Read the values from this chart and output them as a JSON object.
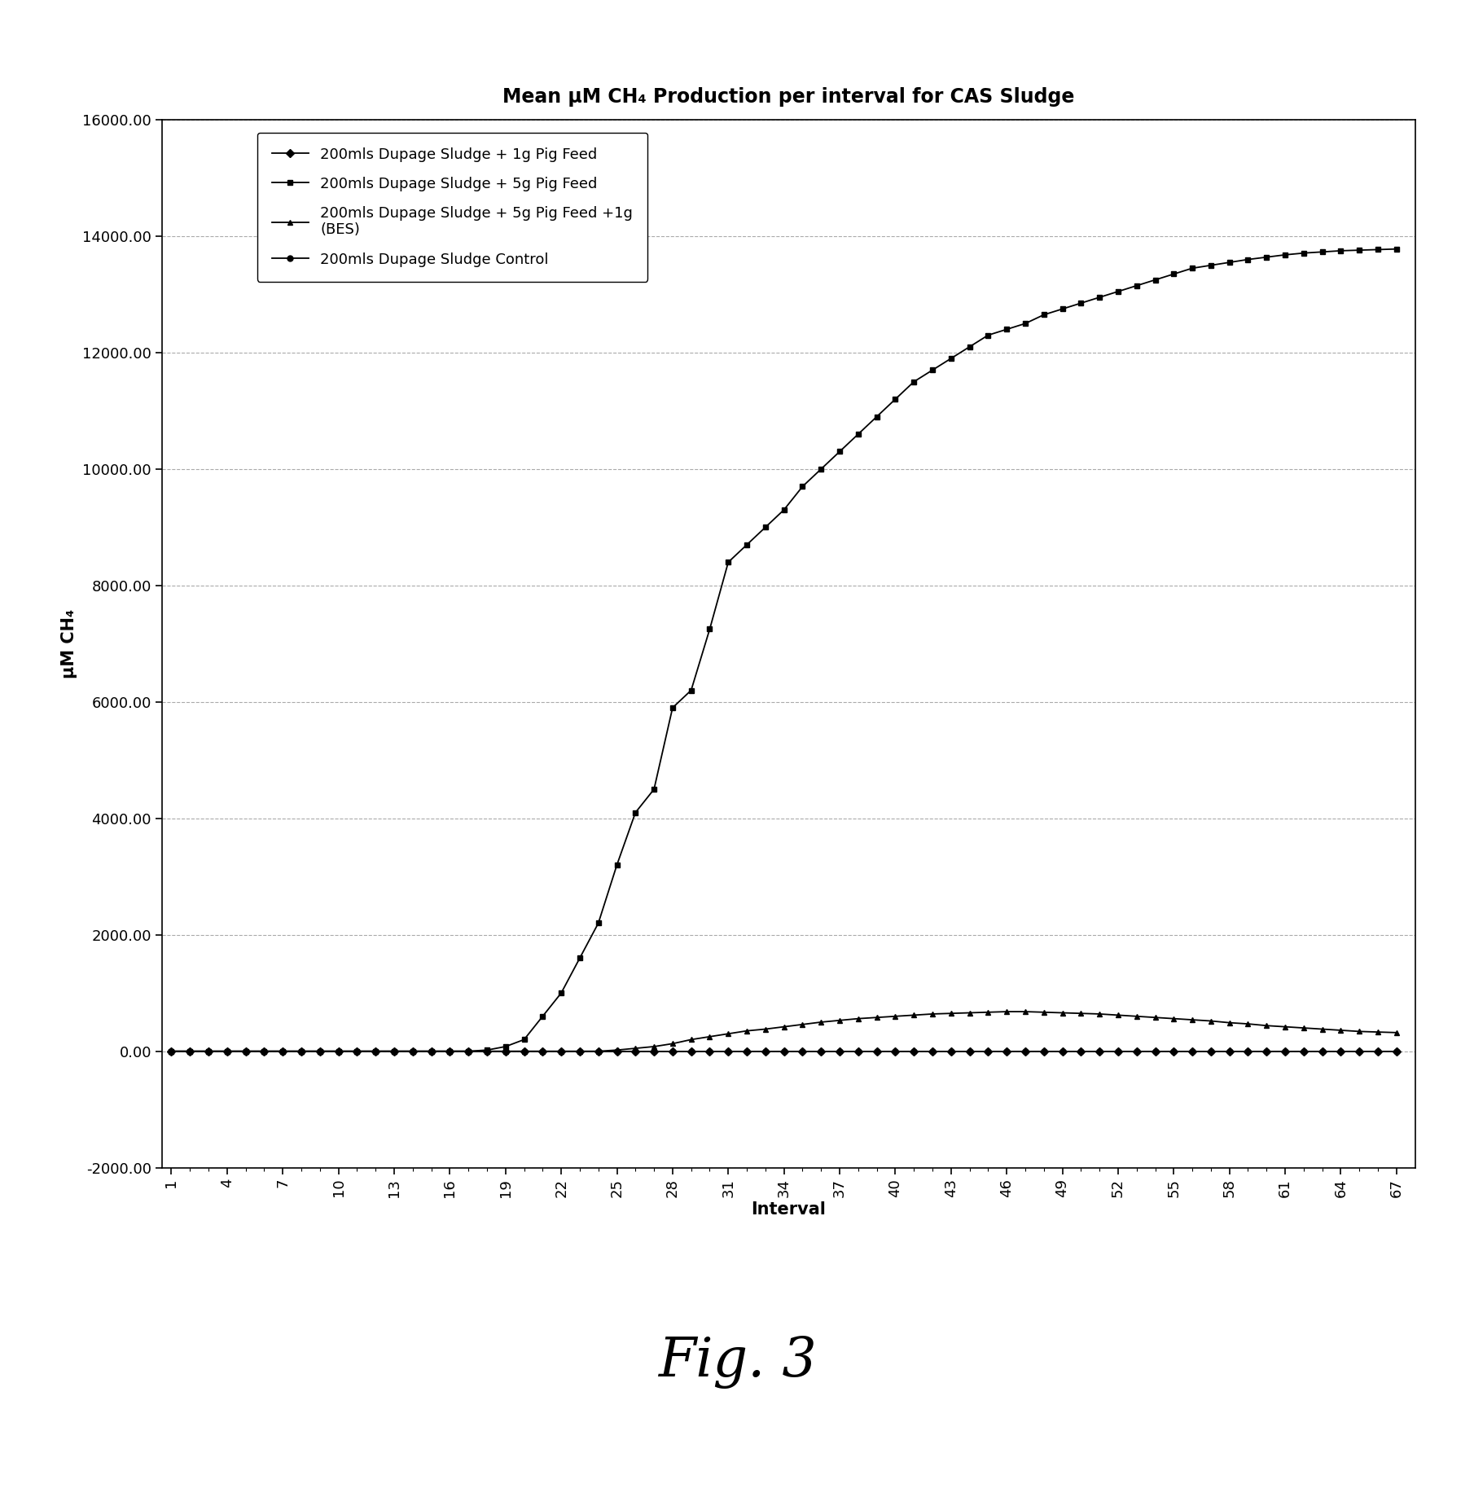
{
  "title": "Mean μM CH₄ Production per interval for CAS Sludge",
  "xlabel": "Interval",
  "ylabel": "μM CH₄",
  "ylim": [
    -2000,
    16000
  ],
  "yticks": [
    -2000,
    0,
    2000,
    4000,
    6000,
    8000,
    10000,
    12000,
    14000,
    16000
  ],
  "ytick_labels": [
    "-2000.00",
    "0.00",
    "2000.00",
    "4000.00",
    "6000.00",
    "8000.00",
    "10000.00",
    "12000.00",
    "14000.00",
    "16000.00"
  ],
  "x_intervals": [
    1,
    2,
    3,
    4,
    5,
    6,
    7,
    8,
    9,
    10,
    11,
    12,
    13,
    14,
    15,
    16,
    17,
    18,
    19,
    20,
    21,
    22,
    23,
    24,
    25,
    26,
    27,
    28,
    29,
    30,
    31,
    32,
    33,
    34,
    35,
    36,
    37,
    38,
    39,
    40,
    41,
    42,
    43,
    44,
    45,
    46,
    47,
    48,
    49,
    50,
    51,
    52,
    53,
    54,
    55,
    56,
    57,
    58,
    59,
    60,
    61,
    62,
    63,
    64,
    65,
    66,
    67
  ],
  "xtick_vals": [
    1,
    4,
    7,
    10,
    13,
    16,
    19,
    22,
    25,
    28,
    31,
    34,
    37,
    40,
    43,
    46,
    49,
    52,
    55,
    58,
    61,
    64,
    67
  ],
  "series": [
    {
      "label": "200mls Dupage Sludge + 1g Pig Feed",
      "marker": "D",
      "markersize": 5,
      "linewidth": 1.3,
      "values": [
        0,
        0,
        0,
        0,
        0,
        0,
        0,
        0,
        0,
        0,
        0,
        0,
        0,
        0,
        0,
        0,
        0,
        0,
        0,
        0,
        0,
        0,
        0,
        0,
        0,
        0,
        0,
        0,
        0,
        0,
        0,
        0,
        0,
        0,
        0,
        0,
        0,
        0,
        0,
        0,
        0,
        0,
        0,
        0,
        0,
        0,
        0,
        0,
        0,
        0,
        0,
        0,
        0,
        0,
        0,
        0,
        0,
        0,
        0,
        0,
        0,
        0,
        0,
        0,
        0,
        0,
        0
      ]
    },
    {
      "label": "200mls Dupage Sludge + 5g Pig Feed",
      "marker": "s",
      "markersize": 5,
      "linewidth": 1.3,
      "values": [
        0,
        0,
        0,
        0,
        0,
        0,
        0,
        0,
        0,
        0,
        0,
        0,
        0,
        0,
        0,
        0,
        0,
        20,
        80,
        200,
        600,
        1000,
        1600,
        2200,
        3200,
        4100,
        4500,
        5900,
        6200,
        7250,
        8400,
        8700,
        9000,
        9300,
        9700,
        10000,
        10300,
        10600,
        10900,
        11200,
        11500,
        11700,
        11900,
        12100,
        12300,
        12400,
        12500,
        12650,
        12750,
        12850,
        12950,
        13050,
        13150,
        13250,
        13350,
        13450,
        13500,
        13550,
        13600,
        13640,
        13680,
        13710,
        13730,
        13750,
        13760,
        13770,
        13780
      ]
    },
    {
      "label": "200mls Dupage Sludge + 5g Pig Feed +1g\n(BES)",
      "marker": "^",
      "markersize": 5,
      "linewidth": 1.3,
      "values": [
        0,
        0,
        0,
        0,
        0,
        0,
        0,
        0,
        0,
        0,
        0,
        0,
        0,
        0,
        0,
        0,
        0,
        0,
        0,
        0,
        0,
        0,
        0,
        0,
        20,
        50,
        80,
        130,
        200,
        250,
        300,
        350,
        380,
        420,
        460,
        500,
        530,
        560,
        580,
        600,
        620,
        640,
        650,
        660,
        670,
        680,
        680,
        670,
        660,
        650,
        640,
        620,
        600,
        580,
        560,
        540,
        520,
        490,
        470,
        440,
        420,
        400,
        380,
        360,
        340,
        330,
        320
      ]
    },
    {
      "label": "200mls Dupage Sludge Control",
      "marker": "o",
      "markersize": 5,
      "linewidth": 1.3,
      "values": [
        0,
        0,
        0,
        0,
        0,
        0,
        0,
        0,
        0,
        0,
        0,
        0,
        0,
        0,
        0,
        0,
        0,
        0,
        0,
        0,
        0,
        0,
        0,
        0,
        0,
        0,
        0,
        0,
        0,
        0,
        0,
        0,
        0,
        0,
        0,
        0,
        0,
        0,
        0,
        0,
        0,
        0,
        0,
        0,
        0,
        0,
        0,
        0,
        0,
        0,
        0,
        0,
        0,
        0,
        0,
        0,
        0,
        0,
        0,
        0,
        0,
        0,
        0,
        0,
        0,
        0,
        0
      ]
    }
  ],
  "fig_caption": "Fig. 3",
  "background_color": "#ffffff",
  "grid_color": "#aaaaaa",
  "title_fontsize": 17,
  "axis_label_fontsize": 15,
  "tick_fontsize": 13,
  "legend_fontsize": 13,
  "caption_fontsize": 48
}
